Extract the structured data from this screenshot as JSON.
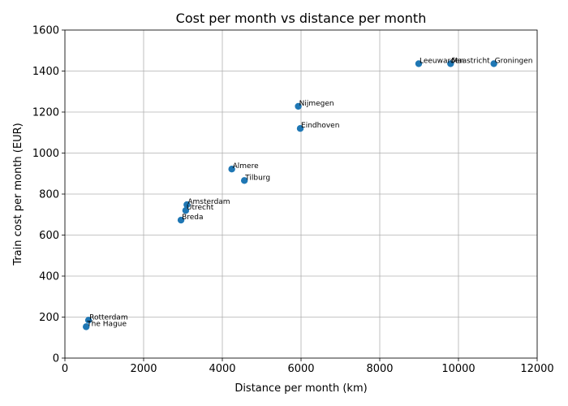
{
  "chart_data": {
    "type": "scatter",
    "title": "Cost per month vs distance per month",
    "xlabel": "Distance per month (km)",
    "ylabel": "Train cost per month (EUR)",
    "xlim": [
      0,
      12000
    ],
    "ylim": [
      0,
      1600
    ],
    "xticks": [
      0,
      2000,
      4000,
      6000,
      8000,
      10000,
      12000
    ],
    "yticks": [
      0,
      200,
      400,
      600,
      800,
      1000,
      1200,
      1400,
      1600
    ],
    "grid": true,
    "marker_color": "#1f77b4",
    "points": [
      {
        "label": "Rotterdam",
        "x": 600,
        "y": 185
      },
      {
        "label": "The Hague",
        "x": 540,
        "y": 153
      },
      {
        "label": "Breda",
        "x": 2950,
        "y": 673
      },
      {
        "label": "Utrecht",
        "x": 3070,
        "y": 720
      },
      {
        "label": "Amsterdam",
        "x": 3100,
        "y": 748
      },
      {
        "label": "Almere",
        "x": 4240,
        "y": 922
      },
      {
        "label": "Tilburg",
        "x": 4560,
        "y": 866
      },
      {
        "label": "Eindhoven",
        "x": 5980,
        "y": 1120
      },
      {
        "label": "Nijmegen",
        "x": 5930,
        "y": 1228
      },
      {
        "label": "Leeuwarden",
        "x": 8990,
        "y": 1436
      },
      {
        "label": "Maastricht",
        "x": 9800,
        "y": 1436
      },
      {
        "label": "Groningen",
        "x": 10900,
        "y": 1436
      }
    ]
  }
}
